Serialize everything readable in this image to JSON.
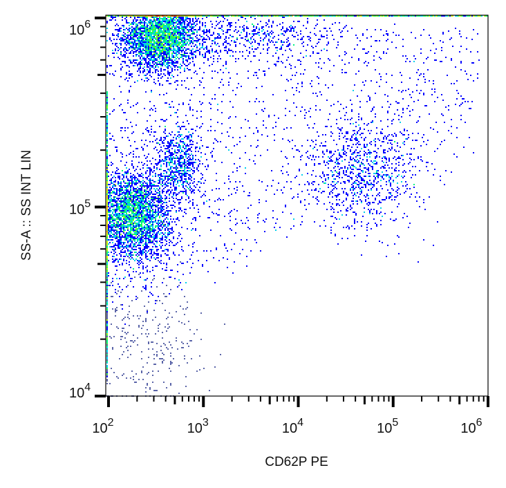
{
  "chart_data": {
    "type": "scatter",
    "subtype": "density-dot-plot",
    "xlabel": "CD62P PE",
    "ylabel": "SS-A :: SS INT LIN",
    "x_scale": "log",
    "y_scale": "log",
    "xlim": [
      100,
      1200000
    ],
    "ylim": [
      10000,
      1150000
    ],
    "x_ticks": [
      {
        "base": "10",
        "exp": "2",
        "value": 100
      },
      {
        "base": "10",
        "exp": "3",
        "value": 1000
      },
      {
        "base": "10",
        "exp": "4",
        "value": 10000
      },
      {
        "base": "10",
        "exp": "5",
        "value": 100000
      },
      {
        "base": "10",
        "exp": "6",
        "value": 1000000
      }
    ],
    "y_ticks": [
      {
        "base": "10",
        "exp": "4",
        "value": 10000
      },
      {
        "base": "10",
        "exp": "5",
        "value": 100000
      },
      {
        "base": "10",
        "exp": "6",
        "value": 1000000
      }
    ],
    "grid": false,
    "colormap": [
      "#0000ff",
      "#00c8ff",
      "#00ff60",
      "#c8ff00",
      "#ffd000",
      "#ff0000"
    ],
    "populations": [
      {
        "x_center": 350,
        "y_center": 800000,
        "x_spread_decades": 0.2,
        "y_spread_decades": 0.09,
        "count": 3200,
        "color": "density"
      },
      {
        "x_center": 180,
        "y_center": 90000,
        "x_spread_decades": 0.2,
        "y_spread_decades": 0.12,
        "count": 3200,
        "color": "density"
      },
      {
        "x_center": 550,
        "y_center": 170000,
        "x_spread_decades": 0.12,
        "y_spread_decades": 0.1,
        "count": 700,
        "color": "density"
      },
      {
        "x_center": 50000,
        "y_center": 150000,
        "x_spread_decades": 0.3,
        "y_spread_decades": 0.15,
        "count": 900,
        "color": "density"
      },
      {
        "x_center": 3000,
        "y_center": 800000,
        "x_spread_decades": 0.5,
        "y_spread_decades": 0.08,
        "count": 600,
        "color": "density"
      },
      {
        "x_center": 250,
        "y_center": 20000,
        "x_spread_decades": 0.3,
        "y_spread_decades": 0.18,
        "count": 300,
        "color": "#5a64a8"
      }
    ]
  }
}
